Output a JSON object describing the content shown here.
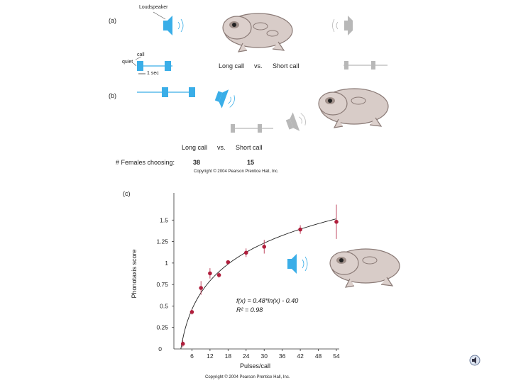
{
  "panel_a": {
    "label": "(a)",
    "loudspeaker_label": "Loudspeaker",
    "call_label": "call",
    "quiet_label": "quiet",
    "scale_label": "1 sec",
    "comparison": {
      "long": "Long call",
      "vs": "vs.",
      "short": "Short call"
    }
  },
  "panel_b": {
    "label": "(b)",
    "comparison": {
      "long": "Long call",
      "vs": "vs.",
      "short": "Short call"
    },
    "females_label": "# Females choosing:",
    "long_count": "38",
    "short_count": "15",
    "copyright": "Copyright © 2004 Pearson Prentice Hall, Inc."
  },
  "panel_c": {
    "label": "(c)",
    "equation": "f(x) = 0.48*ln(x) - 0.40",
    "r_squared": "R² = 0.98",
    "copyright": "Copyright © 2004 Pearson Prentice Hall, Inc."
  },
  "colors": {
    "speaker": "#3aaee8",
    "grey": "#b8b8b8",
    "point": "#b01e3c"
  },
  "chart_data": {
    "type": "scatter",
    "title": "",
    "xlabel": "Pulses/call",
    "ylabel": "Phonotaxis score",
    "xlim": [
      0,
      54
    ],
    "ylim": [
      0,
      1.75
    ],
    "x_ticks": [
      "6",
      "12",
      "18",
      "24",
      "30",
      "36",
      "42",
      "48",
      "54"
    ],
    "y_ticks": [
      "0",
      "0.25",
      "0.5",
      "0.75",
      "1",
      "1.25",
      "1.5"
    ],
    "fit": {
      "formula": "0.48*ln(x) - 0.40"
    },
    "series": [
      {
        "name": "Phonotaxis score",
        "x": [
          3,
          6,
          9,
          12,
          15,
          18,
          24,
          30,
          42,
          54
        ],
        "y": [
          0.06,
          0.43,
          0.71,
          0.88,
          0.86,
          1.01,
          1.12,
          1.19,
          1.39,
          1.48
        ],
        "err": [
          0.04,
          0.03,
          0.08,
          0.06,
          0.03,
          0.02,
          0.05,
          0.08,
          0.05,
          0.2
        ]
      }
    ]
  }
}
